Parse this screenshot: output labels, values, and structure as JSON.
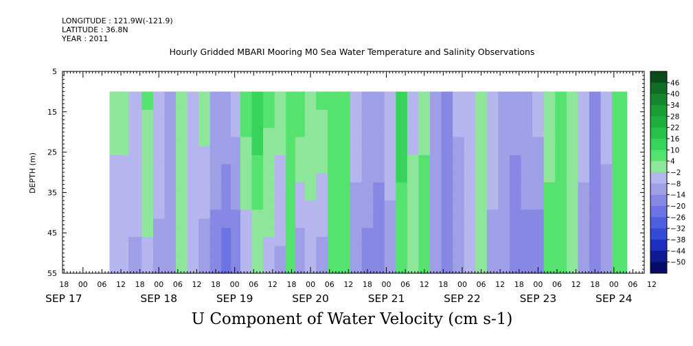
{
  "meta": {
    "longitude": "LONGITUDE : 121.9W(-121.9)",
    "latitude": "LATITUDE : 36.8N",
    "year": "YEAR : 2011"
  },
  "chart_data": {
    "type": "heatmap",
    "title": "Hourly Gridded MBARI Mooring M0 Sea Water Temperature and Salinity Observations",
    "xlabel": "U Component of Water Velocity (cm s-1)",
    "ylabel": "DEPTH (m)",
    "ylim": [
      55,
      5
    ],
    "y_ticks": [
      5,
      15,
      25,
      35,
      45,
      55
    ],
    "x_hour_ticks": [
      "18",
      "00",
      "06",
      "12",
      "18",
      "00",
      "06",
      "12",
      "18",
      "00",
      "06",
      "12",
      "18",
      "00",
      "06",
      "12",
      "18",
      "00",
      "06",
      "12",
      "18",
      "00",
      "06",
      "12",
      "18",
      "00",
      "06",
      "12",
      "18",
      "00",
      "06",
      "12"
    ],
    "x_date_labels": [
      "SEP 17",
      "SEP 18",
      "SEP 19",
      "SEP 20",
      "SEP 21",
      "SEP 22",
      "SEP 23",
      "SEP 24"
    ],
    "data_depth_range_m": [
      10,
      55
    ],
    "colorbar": {
      "labels": [
        "46",
        "40",
        "34",
        "28",
        "22",
        "16",
        "10",
        "4",
        "-2",
        "-8",
        "-14",
        "-20",
        "-26",
        "-32",
        "-38",
        "-44",
        "-50"
      ],
      "colors": [
        "#0b4a1c",
        "#106d26",
        "#15862f",
        "#1a9c37",
        "#1fae3e",
        "#25c24a",
        "#36d55a",
        "#55e26f",
        "#8ee69a",
        "#b6b6ee",
        "#9f9fe8",
        "#8787e4",
        "#6c73e2",
        "#4e5fe0",
        "#3449d6",
        "#1f2fc0",
        "#0e1a92",
        "#060d66"
      ]
    },
    "columns": [
      {
        "day": 17.5,
        "top": 0,
        "bottom": -6
      },
      {
        "day": 17.7,
        "top": -4,
        "bottom": -9
      },
      {
        "day": 17.85,
        "top": 5,
        "bottom": -4
      },
      {
        "day": 18.0,
        "top": -3,
        "bottom": -10
      },
      {
        "day": 18.15,
        "top": -12,
        "bottom": -8
      },
      {
        "day": 18.3,
        "top": 3,
        "bottom": 2
      },
      {
        "day": 18.45,
        "top": -2,
        "bottom": -8
      },
      {
        "day": 18.6,
        "top": 2,
        "bottom": -12
      },
      {
        "day": 18.75,
        "top": -10,
        "bottom": -16
      },
      {
        "day": 18.9,
        "top": -8,
        "bottom": -24
      },
      {
        "day": 19.0,
        "top": -4,
        "bottom": -20
      },
      {
        "day": 19.15,
        "top": 8,
        "bottom": -8
      },
      {
        "day": 19.3,
        "top": 16,
        "bottom": -2
      },
      {
        "day": 19.45,
        "top": 6,
        "bottom": -4
      },
      {
        "day": 19.6,
        "top": 2,
        "bottom": -10
      },
      {
        "day": 19.75,
        "top": 4,
        "bottom": 6
      },
      {
        "day": 19.85,
        "top": 10,
        "bottom": -14
      },
      {
        "day": 20.0,
        "top": 4,
        "bottom": -6
      },
      {
        "day": 20.15,
        "top": 6,
        "bottom": -12
      },
      {
        "day": 20.3,
        "top": 6,
        "bottom": 4
      },
      {
        "day": 20.45,
        "top": 10,
        "bottom": 6
      },
      {
        "day": 20.6,
        "top": -6,
        "bottom": -10
      },
      {
        "day": 20.75,
        "top": -8,
        "bottom": -16
      },
      {
        "day": 20.9,
        "top": -10,
        "bottom": -18
      },
      {
        "day": 21.05,
        "top": -2,
        "bottom": -12
      },
      {
        "day": 21.2,
        "top": 16,
        "bottom": 4
      },
      {
        "day": 21.35,
        "top": -4,
        "bottom": 2
      },
      {
        "day": 21.5,
        "top": 2,
        "bottom": 8
      },
      {
        "day": 21.65,
        "top": -10,
        "bottom": -14
      },
      {
        "day": 21.8,
        "top": -16,
        "bottom": -20
      },
      {
        "day": 21.95,
        "top": -6,
        "bottom": -14
      },
      {
        "day": 22.1,
        "top": -2,
        "bottom": -8
      },
      {
        "day": 22.25,
        "top": 2,
        "bottom": 4
      },
      {
        "day": 22.4,
        "top": -4,
        "bottom": -10
      },
      {
        "day": 22.55,
        "top": -8,
        "bottom": -14
      },
      {
        "day": 22.7,
        "top": -12,
        "bottom": -18
      },
      {
        "day": 22.85,
        "top": -10,
        "bottom": -16
      },
      {
        "day": 23.0,
        "top": -4,
        "bottom": -20
      },
      {
        "day": 23.15,
        "top": 2,
        "bottom": 6
      },
      {
        "day": 23.3,
        "top": 8,
        "bottom": 4
      },
      {
        "day": 23.45,
        "top": -2,
        "bottom": -2
      },
      {
        "day": 23.6,
        "top": -6,
        "bottom": -10
      },
      {
        "day": 23.75,
        "top": -14,
        "bottom": -20
      },
      {
        "day": 23.9,
        "top": -4,
        "bottom": -14
      },
      {
        "day": 24.05,
        "top": 4,
        "bottom": 6
      }
    ]
  }
}
